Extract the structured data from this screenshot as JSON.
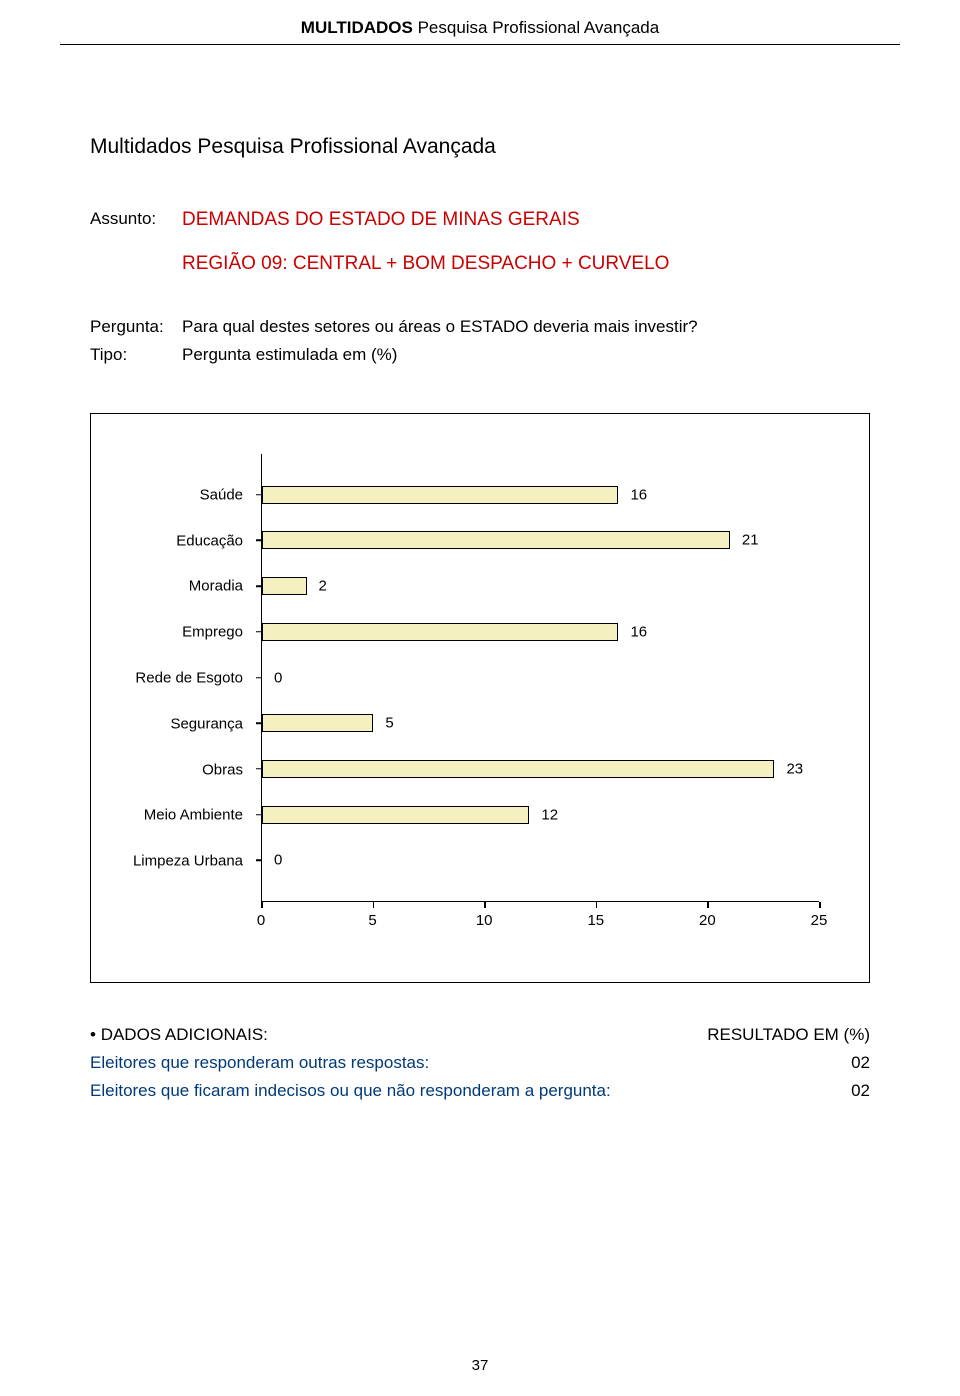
{
  "header": {
    "brand": "MULTIDADOS",
    "sub": "Pesquisa Profissional Avançada"
  },
  "title": "Multidados Pesquisa Profissional Avançada",
  "meta1": {
    "label": "Assunto:",
    "line1": "DEMANDAS DO ESTADO DE MINAS GERAIS",
    "line2": "REGIÃO 09: CENTRAL + BOM DESPACHO + CURVELO"
  },
  "meta2": {
    "label1": "Pergunta:",
    "value1": "Para qual destes setores ou áreas o ESTADO deveria mais investir?",
    "label2": "Tipo:",
    "value2": "Pergunta estimulada em (%)"
  },
  "chart": {
    "type": "bar",
    "orientation": "horizontal",
    "xlim": [
      0,
      25
    ],
    "xticks": [
      0,
      5,
      10,
      15,
      20,
      25
    ],
    "categories": [
      "Saúde",
      "Educação",
      "Moradia",
      "Emprego",
      "Rede de Esgoto",
      "Segurança",
      "Obras",
      "Meio Ambiente",
      "Limpeza Urbana"
    ],
    "values": [
      16,
      21,
      2,
      16,
      0,
      5,
      23,
      12,
      0
    ],
    "bar_color": "#f5f0c0",
    "bar_border": "#000000",
    "axis_color": "#000000",
    "label_fontsize": 15,
    "background_color": "#ffffff"
  },
  "footer": {
    "header_left": "DADOS ADICIONAIS:",
    "header_right": "RESULTADO EM (%)",
    "rows": [
      {
        "label": "Eleitores que responderam outras respostas:",
        "value": "02"
      },
      {
        "label": "Eleitores que ficaram indecisos ou que não responderam a pergunta:",
        "value": "02"
      }
    ]
  },
  "page_number": "37"
}
